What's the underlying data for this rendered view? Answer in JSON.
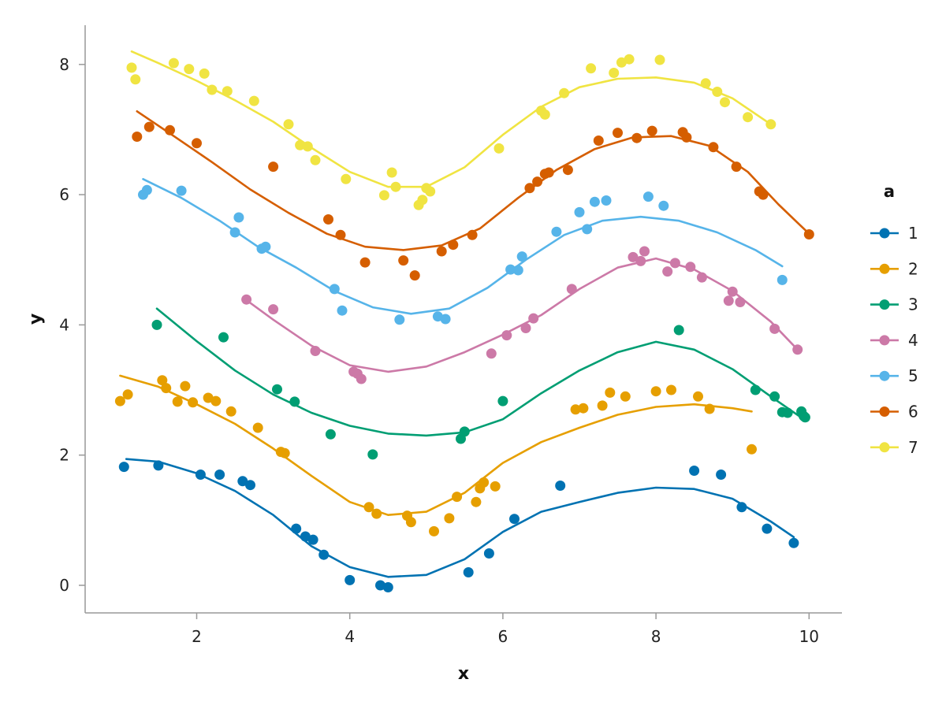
{
  "chart_data": {
    "type": "scatter",
    "title": "",
    "xlabel": "x",
    "ylabel": "y",
    "xlim": [
      0.6,
      10.45
    ],
    "ylim": [
      -0.45,
      8.6
    ],
    "xticks": [
      2,
      4,
      6,
      8,
      10
    ],
    "yticks": [
      0,
      2,
      4,
      6,
      8
    ],
    "grid": false,
    "legend": {
      "title": "a",
      "position": "right"
    },
    "series": [
      {
        "name": "1",
        "color": "#0072b2",
        "points": [
          [
            1.05,
            1.82
          ],
          [
            1.5,
            1.84
          ],
          [
            2.05,
            1.7
          ],
          [
            2.3,
            1.7
          ],
          [
            2.6,
            1.6
          ],
          [
            2.7,
            1.54
          ],
          [
            3.3,
            0.87
          ],
          [
            3.42,
            0.75
          ],
          [
            3.52,
            0.7
          ],
          [
            3.66,
            0.47
          ],
          [
            4.0,
            0.08
          ],
          [
            4.4,
            0.0
          ],
          [
            4.5,
            -0.03
          ],
          [
            5.55,
            0.2
          ],
          [
            5.82,
            0.49
          ],
          [
            6.15,
            1.02
          ],
          [
            6.75,
            1.53
          ],
          [
            8.5,
            1.76
          ],
          [
            8.85,
            1.7
          ],
          [
            9.12,
            1.2
          ],
          [
            9.45,
            0.87
          ],
          [
            9.8,
            0.65
          ]
        ],
        "curve": [
          [
            1.08,
            1.94
          ],
          [
            1.5,
            1.9
          ],
          [
            2.0,
            1.72
          ],
          [
            2.5,
            1.45
          ],
          [
            3.0,
            1.08
          ],
          [
            3.5,
            0.6
          ],
          [
            4.0,
            0.28
          ],
          [
            4.5,
            0.13
          ],
          [
            5.0,
            0.16
          ],
          [
            5.5,
            0.4
          ],
          [
            6.0,
            0.82
          ],
          [
            6.5,
            1.13
          ],
          [
            7.0,
            1.28
          ],
          [
            7.5,
            1.42
          ],
          [
            8.0,
            1.5
          ],
          [
            8.5,
            1.48
          ],
          [
            9.0,
            1.33
          ],
          [
            9.5,
            0.98
          ],
          [
            9.8,
            0.74
          ]
        ]
      },
      {
        "name": "2",
        "color": "#e69f00",
        "points": [
          [
            1.0,
            2.83
          ],
          [
            1.1,
            2.93
          ],
          [
            1.55,
            3.15
          ],
          [
            1.6,
            3.03
          ],
          [
            1.75,
            2.82
          ],
          [
            1.85,
            3.06
          ],
          [
            1.95,
            2.81
          ],
          [
            2.15,
            2.88
          ],
          [
            2.25,
            2.83
          ],
          [
            2.45,
            2.67
          ],
          [
            2.8,
            2.42
          ],
          [
            3.1,
            2.05
          ],
          [
            3.15,
            2.03
          ],
          [
            4.25,
            1.2
          ],
          [
            4.35,
            1.1
          ],
          [
            4.75,
            1.07
          ],
          [
            4.8,
            0.97
          ],
          [
            5.1,
            0.83
          ],
          [
            5.3,
            1.03
          ],
          [
            5.4,
            1.36
          ],
          [
            5.65,
            1.28
          ],
          [
            5.7,
            1.49
          ],
          [
            5.75,
            1.58
          ],
          [
            5.9,
            1.52
          ],
          [
            6.95,
            2.7
          ],
          [
            7.05,
            2.72
          ],
          [
            7.3,
            2.76
          ],
          [
            7.4,
            2.96
          ],
          [
            7.6,
            2.9
          ],
          [
            8.0,
            2.98
          ],
          [
            8.2,
            3.0
          ],
          [
            8.55,
            2.9
          ],
          [
            8.7,
            2.71
          ],
          [
            9.25,
            2.09
          ]
        ],
        "curve": [
          [
            1.0,
            3.22
          ],
          [
            1.5,
            3.05
          ],
          [
            2.0,
            2.78
          ],
          [
            2.5,
            2.48
          ],
          [
            3.0,
            2.1
          ],
          [
            3.5,
            1.68
          ],
          [
            4.0,
            1.28
          ],
          [
            4.5,
            1.08
          ],
          [
            5.0,
            1.13
          ],
          [
            5.5,
            1.42
          ],
          [
            6.0,
            1.88
          ],
          [
            6.5,
            2.2
          ],
          [
            7.0,
            2.42
          ],
          [
            7.5,
            2.62
          ],
          [
            8.0,
            2.74
          ],
          [
            8.5,
            2.78
          ],
          [
            9.0,
            2.72
          ],
          [
            9.25,
            2.67
          ]
        ]
      },
      {
        "name": "3",
        "color": "#009e73",
        "points": [
          [
            1.48,
            4.0
          ],
          [
            2.35,
            3.81
          ],
          [
            3.05,
            3.01
          ],
          [
            3.28,
            2.82
          ],
          [
            3.75,
            2.32
          ],
          [
            4.3,
            2.01
          ],
          [
            5.45,
            2.25
          ],
          [
            5.5,
            2.36
          ],
          [
            6.0,
            2.83
          ],
          [
            8.3,
            3.92
          ],
          [
            9.3,
            3.0
          ],
          [
            9.55,
            2.9
          ],
          [
            9.65,
            2.66
          ],
          [
            9.72,
            2.65
          ],
          [
            9.9,
            2.67
          ],
          [
            9.93,
            2.6
          ],
          [
            9.95,
            2.58
          ]
        ],
        "curve": [
          [
            1.48,
            4.25
          ],
          [
            2.0,
            3.75
          ],
          [
            2.5,
            3.3
          ],
          [
            3.0,
            2.93
          ],
          [
            3.5,
            2.65
          ],
          [
            4.0,
            2.45
          ],
          [
            4.5,
            2.33
          ],
          [
            5.0,
            2.3
          ],
          [
            5.5,
            2.35
          ],
          [
            6.0,
            2.55
          ],
          [
            6.5,
            2.95
          ],
          [
            7.0,
            3.3
          ],
          [
            7.5,
            3.58
          ],
          [
            8.0,
            3.74
          ],
          [
            8.5,
            3.62
          ],
          [
            9.0,
            3.32
          ],
          [
            9.5,
            2.9
          ],
          [
            9.93,
            2.55
          ]
        ]
      },
      {
        "name": "4",
        "color": "#cc79a7",
        "points": [
          [
            2.65,
            4.39
          ],
          [
            3.0,
            4.24
          ],
          [
            3.55,
            3.6
          ],
          [
            4.05,
            3.28
          ],
          [
            4.1,
            3.25
          ],
          [
            4.15,
            3.17
          ],
          [
            5.85,
            3.56
          ],
          [
            6.05,
            3.84
          ],
          [
            6.3,
            3.95
          ],
          [
            6.4,
            4.1
          ],
          [
            6.9,
            4.55
          ],
          [
            7.7,
            5.04
          ],
          [
            7.8,
            4.98
          ],
          [
            7.85,
            5.13
          ],
          [
            8.15,
            4.82
          ],
          [
            8.25,
            4.95
          ],
          [
            8.45,
            4.89
          ],
          [
            8.6,
            4.73
          ],
          [
            8.95,
            4.37
          ],
          [
            9.0,
            4.51
          ],
          [
            9.1,
            4.35
          ],
          [
            9.55,
            3.94
          ],
          [
            9.85,
            3.62
          ]
        ],
        "curve": [
          [
            2.65,
            4.38
          ],
          [
            3.0,
            4.08
          ],
          [
            3.5,
            3.68
          ],
          [
            4.0,
            3.38
          ],
          [
            4.5,
            3.28
          ],
          [
            5.0,
            3.36
          ],
          [
            5.5,
            3.58
          ],
          [
            6.0,
            3.85
          ],
          [
            6.5,
            4.15
          ],
          [
            7.0,
            4.55
          ],
          [
            7.5,
            4.88
          ],
          [
            8.0,
            5.02
          ],
          [
            8.5,
            4.85
          ],
          [
            9.0,
            4.52
          ],
          [
            9.5,
            4.05
          ],
          [
            9.85,
            3.62
          ]
        ]
      },
      {
        "name": "5",
        "color": "#56b4e9",
        "points": [
          [
            1.3,
            6.0
          ],
          [
            1.35,
            6.07
          ],
          [
            1.8,
            6.06
          ],
          [
            2.5,
            5.42
          ],
          [
            2.55,
            5.65
          ],
          [
            2.85,
            5.17
          ],
          [
            2.9,
            5.2
          ],
          [
            3.8,
            4.55
          ],
          [
            3.9,
            4.22
          ],
          [
            4.65,
            4.08
          ],
          [
            5.15,
            4.13
          ],
          [
            5.25,
            4.09
          ],
          [
            6.1,
            4.85
          ],
          [
            6.2,
            4.84
          ],
          [
            6.25,
            5.05
          ],
          [
            6.7,
            5.43
          ],
          [
            7.0,
            5.73
          ],
          [
            7.1,
            5.47
          ],
          [
            7.2,
            5.89
          ],
          [
            7.35,
            5.91
          ],
          [
            7.9,
            5.97
          ],
          [
            8.1,
            5.83
          ],
          [
            9.65,
            4.69
          ]
        ],
        "curve": [
          [
            1.3,
            6.24
          ],
          [
            1.8,
            5.95
          ],
          [
            2.3,
            5.6
          ],
          [
            2.8,
            5.2
          ],
          [
            3.3,
            4.88
          ],
          [
            3.8,
            4.52
          ],
          [
            4.3,
            4.27
          ],
          [
            4.8,
            4.17
          ],
          [
            5.3,
            4.25
          ],
          [
            5.8,
            4.57
          ],
          [
            6.3,
            5.0
          ],
          [
            6.8,
            5.38
          ],
          [
            7.3,
            5.6
          ],
          [
            7.8,
            5.66
          ],
          [
            8.3,
            5.6
          ],
          [
            8.8,
            5.42
          ],
          [
            9.3,
            5.15
          ],
          [
            9.65,
            4.9
          ]
        ]
      },
      {
        "name": "6",
        "color": "#d55e00",
        "points": [
          [
            1.22,
            6.89
          ],
          [
            1.38,
            7.04
          ],
          [
            1.65,
            6.99
          ],
          [
            2.0,
            6.79
          ],
          [
            3.0,
            6.43
          ],
          [
            3.72,
            5.62
          ],
          [
            3.88,
            5.38
          ],
          [
            4.2,
            4.96
          ],
          [
            4.7,
            4.99
          ],
          [
            4.85,
            4.76
          ],
          [
            5.2,
            5.13
          ],
          [
            5.35,
            5.23
          ],
          [
            5.6,
            5.38
          ],
          [
            6.35,
            6.1
          ],
          [
            6.45,
            6.2
          ],
          [
            6.55,
            6.32
          ],
          [
            6.6,
            6.34
          ],
          [
            6.85,
            6.38
          ],
          [
            7.25,
            6.83
          ],
          [
            7.5,
            6.95
          ],
          [
            7.75,
            6.87
          ],
          [
            7.95,
            6.98
          ],
          [
            8.35,
            6.96
          ],
          [
            8.4,
            6.88
          ],
          [
            8.75,
            6.73
          ],
          [
            9.05,
            6.43
          ],
          [
            9.35,
            6.05
          ],
          [
            9.4,
            6.0
          ],
          [
            10.0,
            5.39
          ]
        ],
        "curve": [
          [
            1.22,
            7.28
          ],
          [
            1.7,
            6.9
          ],
          [
            2.2,
            6.5
          ],
          [
            2.7,
            6.08
          ],
          [
            3.2,
            5.72
          ],
          [
            3.7,
            5.4
          ],
          [
            4.2,
            5.2
          ],
          [
            4.7,
            5.15
          ],
          [
            5.2,
            5.22
          ],
          [
            5.7,
            5.48
          ],
          [
            6.2,
            5.95
          ],
          [
            6.7,
            6.38
          ],
          [
            7.2,
            6.7
          ],
          [
            7.7,
            6.88
          ],
          [
            8.2,
            6.9
          ],
          [
            8.7,
            6.75
          ],
          [
            9.2,
            6.35
          ],
          [
            9.6,
            5.85
          ],
          [
            10.0,
            5.4
          ]
        ]
      },
      {
        "name": "7",
        "color": "#f0e442",
        "points": [
          [
            1.15,
            7.95
          ],
          [
            1.2,
            7.77
          ],
          [
            1.7,
            8.02
          ],
          [
            1.9,
            7.93
          ],
          [
            2.1,
            7.86
          ],
          [
            2.2,
            7.61
          ],
          [
            2.4,
            7.59
          ],
          [
            2.75,
            7.44
          ],
          [
            3.2,
            7.08
          ],
          [
            3.35,
            6.76
          ],
          [
            3.45,
            6.74
          ],
          [
            3.55,
            6.53
          ],
          [
            3.95,
            6.24
          ],
          [
            4.45,
            5.99
          ],
          [
            4.55,
            6.34
          ],
          [
            4.6,
            6.12
          ],
          [
            4.9,
            5.84
          ],
          [
            4.95,
            5.92
          ],
          [
            5.0,
            6.1
          ],
          [
            5.05,
            6.05
          ],
          [
            5.95,
            6.71
          ],
          [
            6.5,
            7.29
          ],
          [
            6.55,
            7.23
          ],
          [
            6.8,
            7.56
          ],
          [
            7.15,
            7.94
          ],
          [
            7.45,
            7.87
          ],
          [
            7.55,
            8.03
          ],
          [
            7.65,
            8.08
          ],
          [
            8.05,
            8.07
          ],
          [
            8.65,
            7.71
          ],
          [
            8.8,
            7.58
          ],
          [
            8.9,
            7.42
          ],
          [
            9.2,
            7.19
          ],
          [
            9.5,
            7.08
          ]
        ],
        "curve": [
          [
            1.15,
            8.2
          ],
          [
            1.5,
            8.02
          ],
          [
            2.0,
            7.75
          ],
          [
            2.5,
            7.45
          ],
          [
            3.0,
            7.12
          ],
          [
            3.5,
            6.72
          ],
          [
            4.0,
            6.35
          ],
          [
            4.5,
            6.12
          ],
          [
            5.0,
            6.12
          ],
          [
            5.5,
            6.42
          ],
          [
            6.0,
            6.92
          ],
          [
            6.5,
            7.35
          ],
          [
            7.0,
            7.65
          ],
          [
            7.5,
            7.78
          ],
          [
            8.0,
            7.8
          ],
          [
            8.5,
            7.72
          ],
          [
            9.0,
            7.48
          ],
          [
            9.5,
            7.08
          ]
        ]
      }
    ]
  }
}
